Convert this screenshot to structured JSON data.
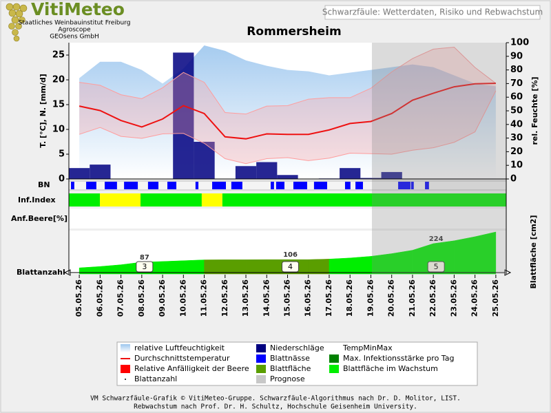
{
  "page": {
    "logo_name": "VitiMeteo",
    "logo_lines": [
      "Staatliches Weinbauinstitut Freiburg",
      "Agroscope",
      "GEOsens GmbH"
    ],
    "header": "Schwarzfäule: Wetterdaten, Risiko und Rebwachstum",
    "footer": [
      "VM Schwarzfäule-Grafik © VitiMeteo-Gruppe. Schwarzfäule-Algorithmus nach Dr. D. Molitor, LIST.",
      "Rebwachstum nach Prof. Dr. H. Schultz, Hochschule Geisenheim University."
    ]
  },
  "chart_data": {
    "type": "line",
    "title": "Rommersheim",
    "ylabel": "T. [°C], N. [mm/d]",
    "y2label": "rel. Feuchte [%]",
    "categories": [
      "05.05.26",
      "06.05.26",
      "07.05.26",
      "08.05.26",
      "09.05.26",
      "10.05.26",
      "11.05.26",
      "12.05.26",
      "13.05.26",
      "14.05.26",
      "15.05.26",
      "16.05.26",
      "17.05.26",
      "18.05.26",
      "19.05.26",
      "20.05.26",
      "21.05.26",
      "22.05.26",
      "23.05.26",
      "24.05.26",
      "25.05.26"
    ],
    "ylim": [
      0,
      27.5
    ],
    "yticks": [
      0,
      5,
      10,
      15,
      20,
      25
    ],
    "y2lim": [
      0,
      100
    ],
    "y2ticks": [
      0,
      10,
      20,
      30,
      40,
      50,
      60,
      70,
      80,
      90,
      100
    ],
    "series": [
      {
        "name": "relative Luftfeuchtigkeit",
        "type": "area",
        "axis": "y2",
        "color": "#9cc6ee",
        "values": [
          74,
          86,
          86,
          80,
          70,
          81,
          98,
          94,
          87,
          83,
          80,
          79,
          76,
          78,
          80,
          82,
          84,
          82,
          76,
          70,
          68
        ]
      },
      {
        "name": "Niederschläge",
        "type": "bar",
        "color": "#000080",
        "values": [
          2.2,
          2.9,
          0,
          0,
          0,
          25.5,
          7.5,
          0,
          2.6,
          3.4,
          0.8,
          0,
          0.1,
          2.2,
          0.2,
          1.4,
          0,
          0,
          0,
          0,
          0
        ]
      },
      {
        "name": "TempMinMax",
        "type": "band",
        "color": "#ff9c9c",
        "values": [
          19.5,
          18.9,
          17.0,
          16.2,
          18.4,
          21.5,
          19.5,
          13.4,
          13.1,
          14.7,
          14.8,
          16.1,
          16.4,
          16.4,
          18.3,
          21.6,
          24.3,
          26.2,
          26.6,
          22.5,
          19.3
        ],
        "lows": [
          9.0,
          10.4,
          8.6,
          8.2,
          9.1,
          9.2,
          7.2,
          4.1,
          3.1,
          4.1,
          4.3,
          3.7,
          4.2,
          5.2,
          5.1,
          5.0,
          5.8,
          6.3,
          7.4,
          9.5,
          17.8
        ]
      },
      {
        "name": "Durchschnittstemperatur",
        "type": "line",
        "color": "#ee1111",
        "values": [
          14.7,
          13.8,
          11.8,
          10.5,
          12.1,
          14.8,
          13.2,
          8.5,
          8.1,
          9.1,
          9.0,
          9.0,
          9.9,
          11.2,
          11.6,
          13.2,
          15.9,
          17.3,
          18.6,
          19.2,
          19.3
        ]
      }
    ],
    "leaf_wetness": {
      "label": "BN",
      "name": "Blattnässe",
      "color": "#0000ff",
      "periods": [
        [
          0.1,
          0.26
        ],
        [
          0.83,
          1.32
        ],
        [
          1.72,
          2.31
        ],
        [
          2.65,
          3.31
        ],
        [
          3.8,
          4.3
        ],
        [
          4.73,
          5.16
        ],
        [
          6.08,
          6.22
        ],
        [
          6.88,
          7.54
        ],
        [
          7.8,
          8.33
        ],
        [
          9.69,
          9.85
        ],
        [
          9.95,
          10.35
        ],
        [
          10.78,
          11.44
        ],
        [
          11.77,
          12.4
        ],
        [
          13.26,
          13.52
        ],
        [
          13.76,
          14.12
        ],
        [
          15.81,
          16.4
        ],
        [
          16.43,
          16.56
        ],
        [
          17.1,
          17.29
        ]
      ]
    },
    "infection": {
      "label": "Inf.Index",
      "max_name": "Max. Infektionsstärke pro Tag",
      "max_color": "#008000",
      "segments": [
        {
          "start": 0,
          "end": 1.49,
          "color": "#00ee00"
        },
        {
          "start": 1.49,
          "end": 3.44,
          "color": "#ffff00"
        },
        {
          "start": 3.44,
          "end": 6.38,
          "color": "#00ee00"
        },
        {
          "start": 6.38,
          "end": 7.37,
          "color": "#ffff00"
        },
        {
          "start": 7.37,
          "end": 21,
          "color": "#00ee00"
        }
      ]
    },
    "berry": {
      "label": "Anf.Beere[%]",
      "name": "Relative Anfälligkeit der Beere",
      "color": "#ff0000"
    },
    "leaf_area": {
      "name": "Blattfläche",
      "color": "#5a9e00",
      "growth_name": "Blattfläche im Wachstum",
      "growth_color": "#00ee00",
      "ylabel": "Blattfläche [cm2]",
      "ylim": [
        0,
        320
      ],
      "values": [
        45,
        55,
        68,
        87,
        92,
        98,
        104,
        105,
        105,
        106,
        106,
        106,
        110,
        118,
        130,
        150,
        175,
        224,
        245,
        275,
        310
      ],
      "growing": [
        true,
        true,
        true,
        true,
        true,
        true,
        true,
        false,
        false,
        false,
        false,
        false,
        false,
        true,
        true,
        true,
        true,
        true,
        true,
        true,
        true
      ]
    },
    "leaf_count": {
      "label": "Blattanzahl",
      "name": "Blattanzahl",
      "values": [
        null,
        null,
        null,
        3,
        null,
        null,
        null,
        null,
        null,
        null,
        4,
        null,
        null,
        null,
        null,
        null,
        null,
        5,
        null,
        null,
        null
      ]
    },
    "forecast": {
      "name": "Prognose",
      "color": "#c8c8c8",
      "start": 14.55
    }
  }
}
